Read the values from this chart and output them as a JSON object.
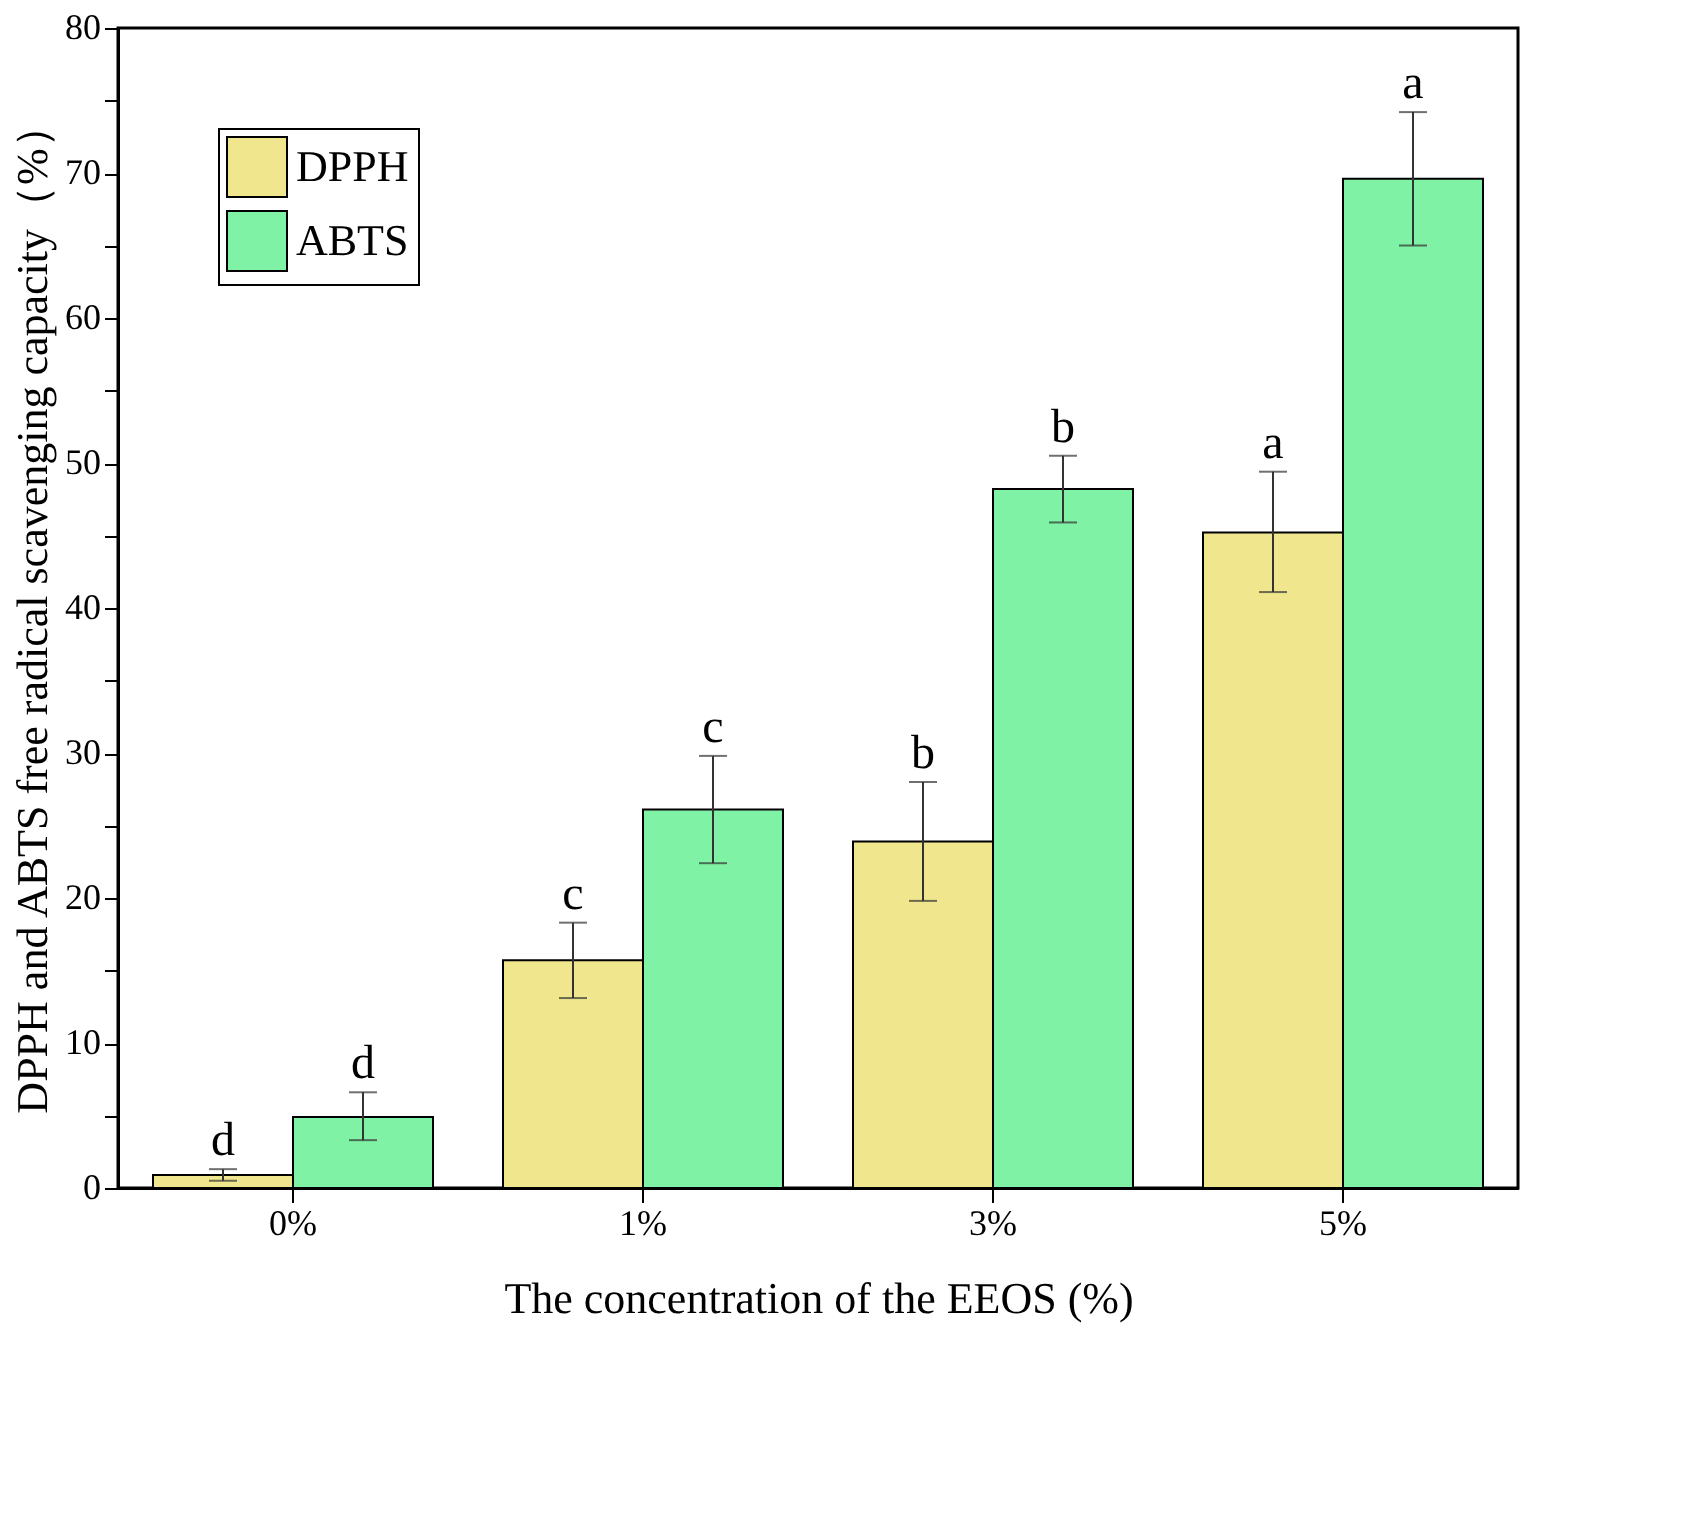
{
  "chart_data": {
    "type": "bar",
    "xlabel": "The concentration of the EEOS (%)",
    "ylabel": "DPPH and ABTS free radical scavenging capacity（%）",
    "categories": [
      "0%",
      "1%",
      "3%",
      "5%"
    ],
    "series": [
      {
        "name": "DPPH",
        "color": "#efe68e",
        "values": [
          0.9,
          15.7,
          23.9,
          45.2
        ],
        "errors": [
          [
            0.5,
            1.3
          ],
          [
            13.1,
            18.3
          ],
          [
            19.8,
            28.0
          ],
          [
            41.1,
            49.4
          ]
        ],
        "value_labels": [
          "d",
          "c",
          "b",
          "a"
        ]
      },
      {
        "name": "ABTS",
        "color": "#80f2a6",
        "values": [
          4.9,
          26.1,
          48.2,
          69.6
        ],
        "errors": [
          [
            3.3,
            6.6
          ],
          [
            22.4,
            29.8
          ],
          [
            45.9,
            50.5
          ],
          [
            65.0,
            74.2
          ]
        ],
        "value_labels": [
          "d",
          "c",
          "b",
          "a"
        ]
      }
    ],
    "ylim": [
      0,
      80
    ],
    "yticks": [
      0,
      {
        "value": 5,
        "label": null
      },
      10,
      {
        "value": 15,
        "label": null
      },
      20,
      {
        "value": 25,
        "label": null
      },
      30,
      {
        "value": 35,
        "label": null
      },
      40,
      {
        "value": 45,
        "label": null
      },
      50,
      {
        "value": 55,
        "label": null
      },
      60,
      {
        "value": 65,
        "label": null
      },
      70,
      {
        "value": 75,
        "label": null
      },
      80
    ],
    "legend": "top left",
    "grid": false
  }
}
